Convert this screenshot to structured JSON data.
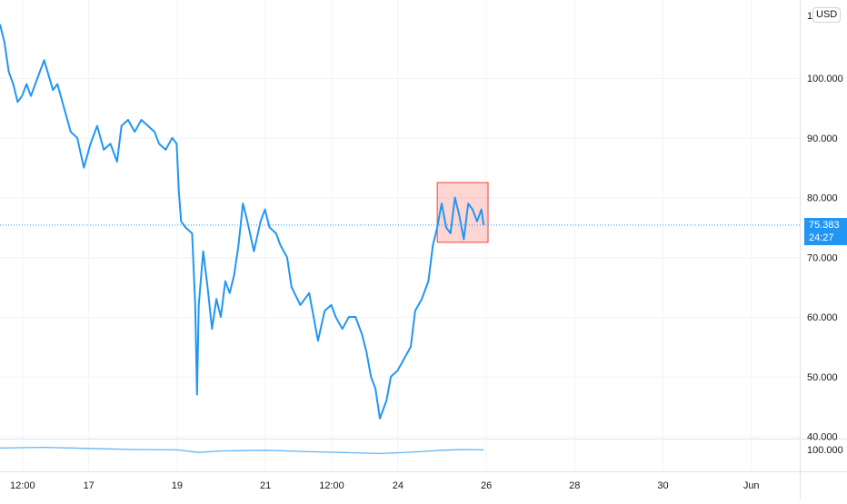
{
  "chart_data": [
    {
      "type": "line",
      "title": "",
      "xlabel": "",
      "ylabel": "",
      "currency_badge": "USD",
      "y_ticks": [
        "100.000",
        "90.000",
        "80.000",
        "70.000",
        "60.000",
        "50.000",
        "40.000"
      ],
      "x_ticks": [
        "12:00",
        "17",
        "19",
        "21",
        "12:00",
        "24",
        "26",
        "28",
        "30",
        "Jun"
      ],
      "ylim": [
        40,
        112
      ],
      "grid": true,
      "series": [
        {
          "color": "#2196f3",
          "x_unit": "days from left edge of visible range (first tick 12:00 = 0.5)",
          "points": [
            [
              0.0,
              109
            ],
            [
              0.1,
              106
            ],
            [
              0.2,
              101
            ],
            [
              0.3,
              99
            ],
            [
              0.4,
              96
            ],
            [
              0.5,
              97
            ],
            [
              0.6,
              99
            ],
            [
              0.7,
              97
            ],
            [
              0.9,
              101
            ],
            [
              1.0,
              103
            ],
            [
              1.2,
              98
            ],
            [
              1.3,
              99
            ],
            [
              1.45,
              95
            ],
            [
              1.6,
              91
            ],
            [
              1.75,
              90
            ],
            [
              1.9,
              85
            ],
            [
              2.05,
              89
            ],
            [
              2.2,
              92
            ],
            [
              2.35,
              88
            ],
            [
              2.5,
              89
            ],
            [
              2.65,
              86
            ],
            [
              2.75,
              92
            ],
            [
              2.9,
              93
            ],
            [
              3.05,
              91
            ],
            [
              3.2,
              93
            ],
            [
              3.35,
              92
            ],
            [
              3.5,
              91
            ],
            [
              3.6,
              89
            ],
            [
              3.75,
              88
            ],
            [
              3.9,
              90
            ],
            [
              4.0,
              89
            ],
            [
              4.05,
              81
            ],
            [
              4.1,
              76
            ],
            [
              4.2,
              75
            ],
            [
              4.35,
              74
            ],
            [
              4.42,
              62
            ],
            [
              4.46,
              47
            ],
            [
              4.5,
              62
            ],
            [
              4.6,
              71
            ],
            [
              4.7,
              65
            ],
            [
              4.8,
              58
            ],
            [
              4.9,
              63
            ],
            [
              5.0,
              60
            ],
            [
              5.1,
              66
            ],
            [
              5.2,
              64
            ],
            [
              5.3,
              67
            ],
            [
              5.4,
              72
            ],
            [
              5.5,
              79
            ],
            [
              5.6,
              76
            ],
            [
              5.75,
              71
            ],
            [
              5.9,
              76
            ],
            [
              6.0,
              78
            ],
            [
              6.1,
              75
            ],
            [
              6.25,
              74
            ],
            [
              6.35,
              72
            ],
            [
              6.5,
              70
            ],
            [
              6.6,
              65
            ],
            [
              6.8,
              62
            ],
            [
              6.9,
              63
            ],
            [
              7.0,
              64
            ],
            [
              7.1,
              60
            ],
            [
              7.2,
              56
            ],
            [
              7.35,
              61
            ],
            [
              7.5,
              62
            ],
            [
              7.6,
              60
            ],
            [
              7.75,
              58
            ],
            [
              7.9,
              60
            ],
            [
              8.05,
              60
            ],
            [
              8.2,
              57
            ],
            [
              8.3,
              54
            ],
            [
              8.4,
              50
            ],
            [
              8.5,
              48
            ],
            [
              8.6,
              43
            ],
            [
              8.75,
              46
            ],
            [
              8.85,
              50
            ],
            [
              9.0,
              51
            ],
            [
              9.15,
              53
            ],
            [
              9.3,
              55
            ],
            [
              9.4,
              61
            ],
            [
              9.55,
              63
            ],
            [
              9.7,
              66
            ],
            [
              9.8,
              72
            ],
            [
              9.9,
              75
            ],
            [
              10.0,
              79
            ],
            [
              10.1,
              75
            ],
            [
              10.2,
              74
            ],
            [
              10.3,
              80
            ],
            [
              10.4,
              77
            ],
            [
              10.5,
              73
            ],
            [
              10.6,
              79
            ],
            [
              10.7,
              78
            ],
            [
              10.8,
              76
            ],
            [
              10.9,
              78
            ],
            [
              10.95,
              75.383
            ]
          ]
        }
      ],
      "last_price": "75.383",
      "countdown": "24:27",
      "highlight_box": {
        "x_range": [
          9.9,
          11.05
        ],
        "y_range": [
          72.5,
          82.5
        ],
        "color": "#f44336"
      }
    },
    {
      "type": "line",
      "title": "",
      "y_ticks": [
        "100.000"
      ],
      "series": [
        {
          "color": "#64b5f6",
          "x_unit": "days from left edge of visible range",
          "values_note": "secondary indicator pane, roughly flat near 100",
          "points": [
            [
              0.0,
              100.4
            ],
            [
              1.0,
              100.6
            ],
            [
              2.0,
              100.3
            ],
            [
              3.0,
              100.0
            ],
            [
              4.0,
              99.9
            ],
            [
              4.5,
              99.2
            ],
            [
              5.0,
              99.6
            ],
            [
              6.0,
              99.8
            ],
            [
              7.0,
              99.4
            ],
            [
              8.0,
              99.1
            ],
            [
              8.6,
              98.9
            ],
            [
              9.0,
              99.1
            ],
            [
              9.5,
              99.4
            ],
            [
              10.0,
              99.8
            ],
            [
              10.5,
              100.0
            ],
            [
              10.95,
              99.9
            ]
          ]
        }
      ]
    }
  ]
}
